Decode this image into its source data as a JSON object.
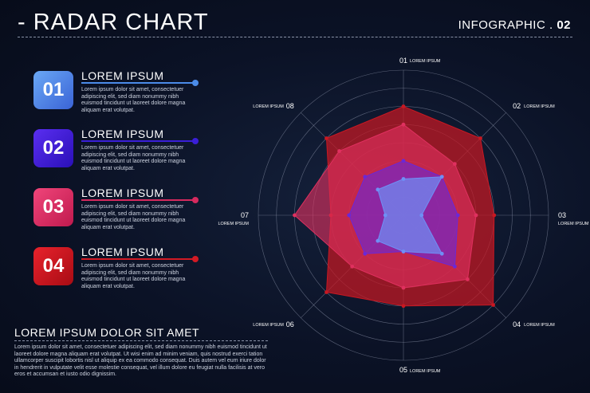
{
  "header": {
    "title": "- RADAR CHART",
    "subtitle_text": "INFOGRAPHIC . ",
    "subtitle_num": "02"
  },
  "items": [
    {
      "num": "01",
      "title": "LOREM IPSUM",
      "text": "Lorem ipsum dolor sit amet, consectetuer adipiscing elit, sed diam nonummy nibh euismod tincidunt ut laoreet dolore magna aliquam erat volutpat.",
      "color_a": "#6aa8f5",
      "color_b": "#3a63d6",
      "accent": "#4b8be8"
    },
    {
      "num": "02",
      "title": "LOREM IPSUM",
      "text": "Lorem ipsum dolor sit amet, consectetuer adipiscing elit, sed diam nonummy nibh euismod tincidunt ut laoreet dolore magna aliquam erat volutpat.",
      "color_a": "#5a2ef0",
      "color_b": "#2a10b8",
      "accent": "#3a1fd8"
    },
    {
      "num": "03",
      "title": "LOREM IPSUM",
      "text": "Lorem ipsum dolor sit amet, consectetuer adipiscing elit, sed diam nonummy nibh euismod tincidunt ut laoreet dolore magna aliquam erat volutpat.",
      "color_a": "#f0457a",
      "color_b": "#c01a4e",
      "accent": "#d62a5e"
    },
    {
      "num": "04",
      "title": "LOREM IPSUM",
      "text": "Lorem ipsum dolor sit amet, consectetuer adipiscing elit, sed diam nonummy nibh euismod tincidunt ut laoreet dolore magna aliquam erat volutpat.",
      "color_a": "#e8222c",
      "color_b": "#a80c14",
      "accent": "#d21a24"
    }
  ],
  "footer": {
    "title": "LOREM IPSUM DOLOR SIT AMET",
    "text": "Lorem ipsum dolor sit amet, consectetuer adipiscing elit, sed diam nonummy nibh euismod tincidunt ut laoreet dolore magna aliquam erat volutpat. Ut wisi enim ad minim veniam, quis nostrud exerci tation ullamcorper suscipit lobortis nisl ut aliquip ex ea commodo consequat. Duis autem vel eum iriure dolor in hendrerit in vulputate velit esse molestie consequat, vel illum dolore eu feugiat nulla facilisis at vero eros et accumsan et iusto odio dignissim."
  },
  "chart_data": {
    "type": "radar",
    "title": "",
    "axes": [
      {
        "num": "01",
        "label": "LOREM IPSUM"
      },
      {
        "num": "02",
        "label": "LOREM IPSUM"
      },
      {
        "num": "03",
        "label": "LOREM IPSUM"
      },
      {
        "num": "04",
        "label": "LOREM IPSUM"
      },
      {
        "num": "05",
        "label": "LOREM IPSUM"
      },
      {
        "num": "06",
        "label": "LOREM IPSUM"
      },
      {
        "num": "07",
        "label": "LOREM IPSUM"
      },
      {
        "num": "08",
        "label": "LOREM IPSUM"
      }
    ],
    "rings": 8,
    "max": 8,
    "series": [
      {
        "color": "#c81822",
        "opacity": 0.72,
        "values": [
          6,
          6,
          5,
          7,
          5,
          6,
          4,
          6
        ]
      },
      {
        "color": "#e0305f",
        "opacity": 0.62,
        "values": [
          5,
          4,
          4,
          5,
          4,
          4,
          6,
          5
        ]
      },
      {
        "color": "#6a28d8",
        "opacity": 0.62,
        "values": [
          3,
          3,
          3,
          4,
          2,
          3,
          3,
          3
        ]
      },
      {
        "color": "#6f8ff5",
        "opacity": 0.72,
        "values": [
          2,
          3,
          1,
          3,
          2,
          2,
          1,
          2
        ]
      }
    ]
  }
}
